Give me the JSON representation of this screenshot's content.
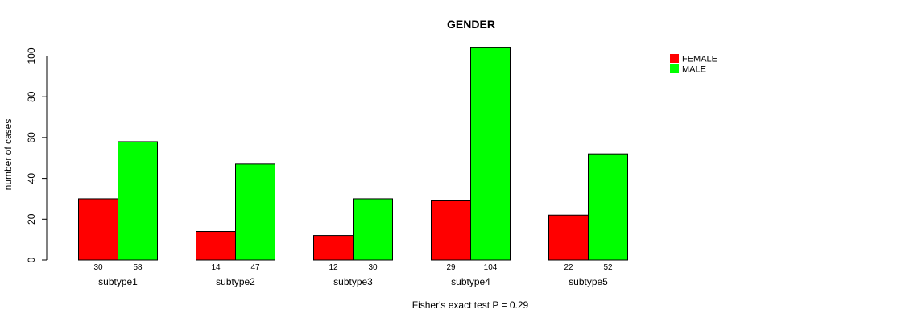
{
  "chart_data": {
    "type": "bar",
    "title": "GENDER",
    "xlabel": "",
    "ylabel": "number of cases",
    "subtitle": "Fisher's exact test P = 0.29",
    "categories": [
      "subtype1",
      "subtype2",
      "subtype3",
      "subtype4",
      "subtype5"
    ],
    "series": [
      {
        "name": "FEMALE",
        "color": "#ff0000",
        "values": [
          30,
          14,
          12,
          29,
          22
        ]
      },
      {
        "name": "MALE",
        "color": "#00ff00",
        "values": [
          58,
          47,
          30,
          104,
          52
        ]
      }
    ],
    "yticks": [
      0,
      20,
      40,
      60,
      80,
      100
    ],
    "ylim": [
      0,
      104
    ],
    "legend_position": "top-right",
    "grid": false
  }
}
